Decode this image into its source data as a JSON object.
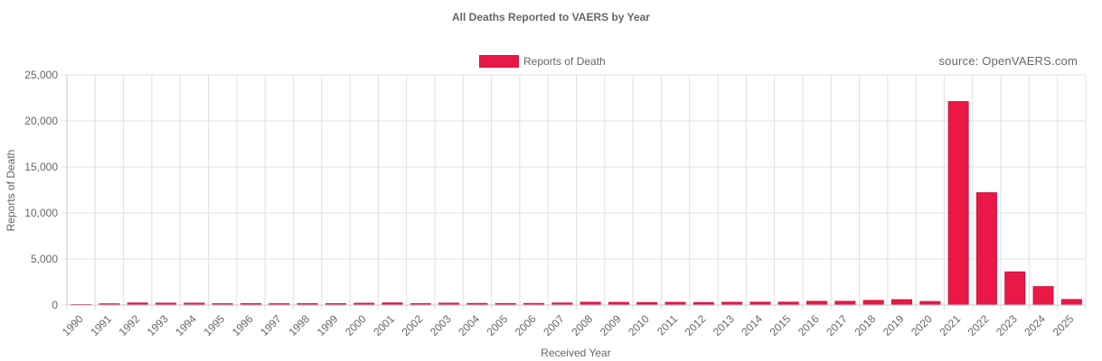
{
  "chart_data": {
    "type": "bar",
    "title": "All Deaths Reported to VAERS by Year",
    "source_note": "source: OpenVAERS.com",
    "xlabel": "Received Year",
    "ylabel": "Reports of Death",
    "ylim": [
      0,
      25000
    ],
    "y_ticks": [
      "0",
      "5,000",
      "10,000",
      "15,000",
      "20,000",
      "25,000"
    ],
    "y_tick_values": [
      0,
      5000,
      10000,
      15000,
      20000,
      25000
    ],
    "grid": true,
    "legend_position": "top-center",
    "bar_color": "#ea1847",
    "bar_border_color": "#d01440",
    "categories": [
      "1990",
      "1991",
      "1992",
      "1993",
      "1994",
      "1995",
      "1996",
      "1997",
      "1998",
      "1999",
      "2000",
      "2001",
      "2002",
      "2003",
      "2004",
      "2005",
      "2006",
      "2007",
      "2008",
      "2009",
      "2010",
      "2011",
      "2012",
      "2013",
      "2014",
      "2015",
      "2016",
      "2017",
      "2018",
      "2019",
      "2020",
      "2021",
      "2022",
      "2023",
      "2024",
      "2025"
    ],
    "series": [
      {
        "name": "Reports of Death",
        "values": [
          50,
          130,
          220,
          200,
          200,
          140,
          150,
          140,
          150,
          150,
          190,
          230,
          150,
          200,
          170,
          160,
          170,
          220,
          300,
          290,
          270,
          290,
          270,
          300,
          310,
          310,
          400,
          400,
          500,
          580,
          380,
          22100,
          12200,
          3600,
          2000,
          600
        ]
      }
    ]
  }
}
